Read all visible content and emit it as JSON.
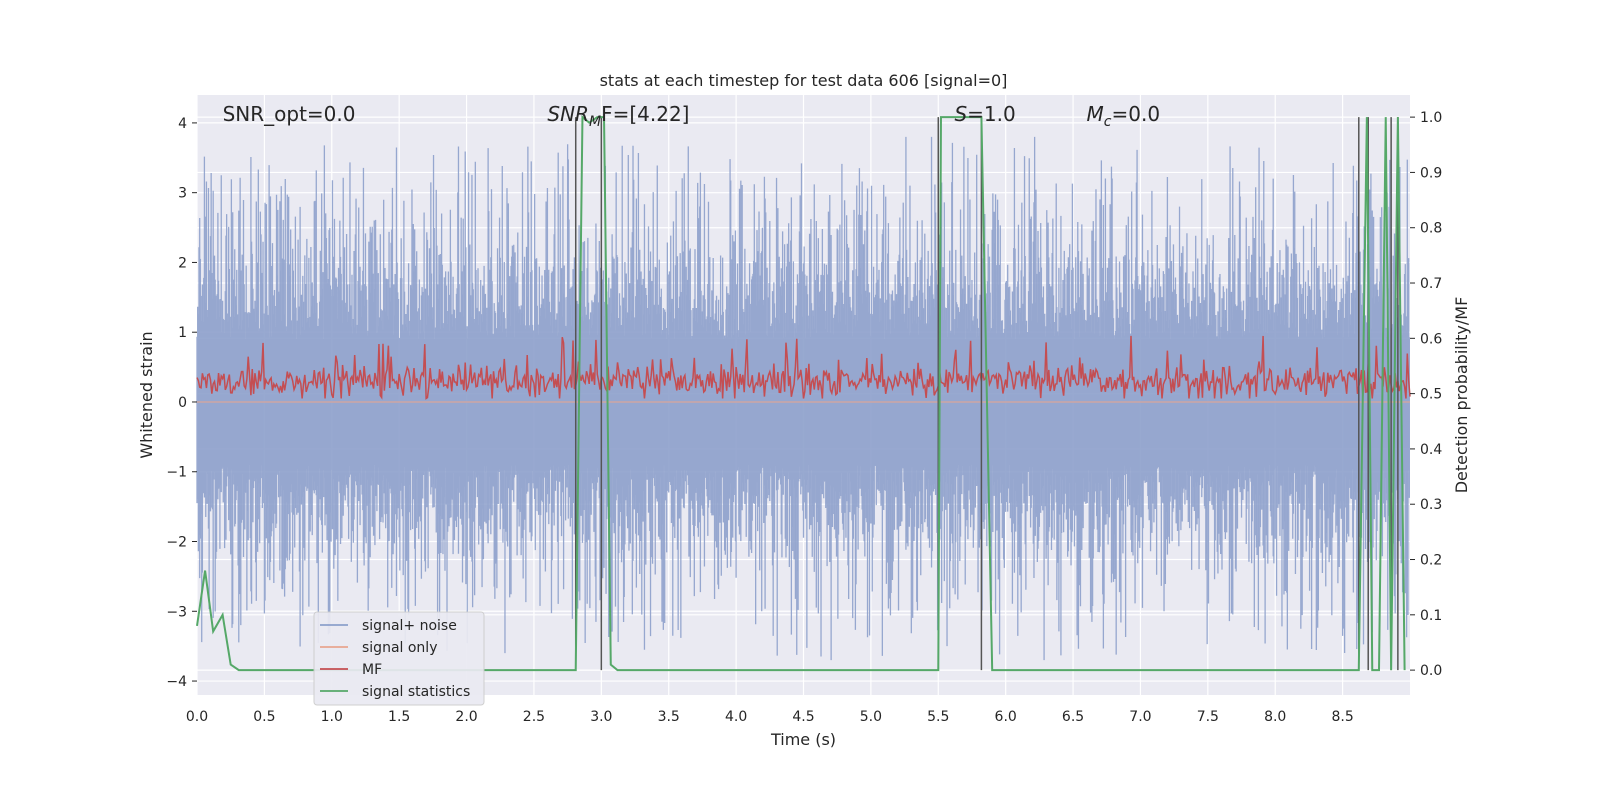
{
  "chart_data": {
    "type": "line",
    "title": "stats at each timestep for test data 606 [signal=0]",
    "xlabel": "Time (s)",
    "ylabel": "Whitened strain",
    "ylabel_right": "Detection probability/MF",
    "xlim": [
      0.0,
      9.0
    ],
    "ylim": [
      -4.2,
      4.4
    ],
    "ylim_right": [
      -0.045,
      1.04
    ],
    "xticks": [
      0.0,
      0.5,
      1.0,
      1.5,
      2.0,
      2.5,
      3.0,
      3.5,
      4.0,
      4.5,
      5.0,
      5.5,
      6.0,
      6.5,
      7.0,
      7.5,
      8.0,
      8.5
    ],
    "xtick_labels": [
      "0.0",
      "0.5",
      "1.0",
      "1.5",
      "2.0",
      "2.5",
      "3.0",
      "3.5",
      "4.0",
      "4.5",
      "5.0",
      "5.5",
      "6.0",
      "6.5",
      "7.0",
      "7.5",
      "8.0",
      "8.5"
    ],
    "yticks": [
      -4,
      -3,
      -2,
      -1,
      0,
      1,
      2,
      3,
      4
    ],
    "ytick_labels": [
      "−4",
      "−3",
      "−2",
      "−1",
      "0",
      "1",
      "2",
      "3",
      "4"
    ],
    "yticks_right": [
      0.0,
      0.1,
      0.2,
      0.3,
      0.4,
      0.5,
      0.6,
      0.7,
      0.8,
      0.9,
      1.0
    ],
    "ytick_right_labels": [
      "0.0",
      "0.1",
      "0.2",
      "0.3",
      "0.4",
      "0.5",
      "0.6",
      "0.7",
      "0.8",
      "0.9",
      "1.0"
    ],
    "grid": true,
    "legend_position": "lower-left",
    "annotations": {
      "snr_opt": "SNR_opt=0.0",
      "snr_mf_italic": "SNR",
      "snr_mf_sub": "M",
      "snr_mf_rest": "F=[4.22]",
      "s_italic": "S",
      "s_rest": "=1.0",
      "mc_italic": "M",
      "mc_sub": "c",
      "mc_rest": "=0.0"
    },
    "series": [
      {
        "name": "signal+ noise",
        "axis": "left",
        "color": "#8da0cb",
        "description_stats": {
          "mean": 0.0,
          "typical_range": [
            -2.2,
            2.2
          ],
          "peaks_max": 3.8,
          "peaks_min": -3.7
        },
        "duration_s": 9.0
      },
      {
        "name": "signal only",
        "axis": "left",
        "color": "#e8a58f",
        "values_constant": 0.0
      },
      {
        "name": "MF",
        "axis": "left",
        "color": "#c44e52",
        "description_stats": {
          "baseline": 0.3,
          "range": [
            0.05,
            1.0
          ]
        },
        "duration_s": 9.0
      },
      {
        "name": "signal statistics",
        "axis": "right",
        "color": "#55a868",
        "x": [
          0.0,
          0.06,
          0.12,
          0.19,
          0.25,
          0.31,
          0.5,
          1.0,
          1.5,
          2.0,
          2.5,
          2.81,
          2.86,
          2.91,
          2.97,
          3.02,
          3.07,
          3.12,
          3.5,
          4.0,
          4.5,
          5.0,
          5.5,
          5.52,
          5.58,
          5.7,
          5.82,
          5.9,
          6.06,
          6.2,
          7.0,
          8.0,
          8.62,
          8.68,
          8.72,
          8.77,
          8.82,
          8.86,
          8.91,
          8.96
        ],
        "y": [
          0.08,
          0.18,
          0.07,
          0.1,
          0.01,
          0.0,
          0.0,
          0.0,
          0.0,
          0.0,
          0.0,
          0.0,
          1.0,
          0.99,
          1.0,
          1.0,
          0.01,
          0.0,
          0.0,
          0.0,
          0.0,
          0.0,
          0.0,
          1.0,
          1.0,
          1.0,
          1.0,
          0.0,
          0.0,
          0.0,
          0.0,
          0.0,
          0.0,
          1.0,
          0.0,
          0.0,
          1.0,
          0.0,
          1.0,
          0.0
        ]
      }
    ],
    "vertical_markers_x": [
      2.81,
      3.0,
      5.5,
      5.82,
      8.62,
      8.69,
      8.86,
      8.91
    ]
  }
}
